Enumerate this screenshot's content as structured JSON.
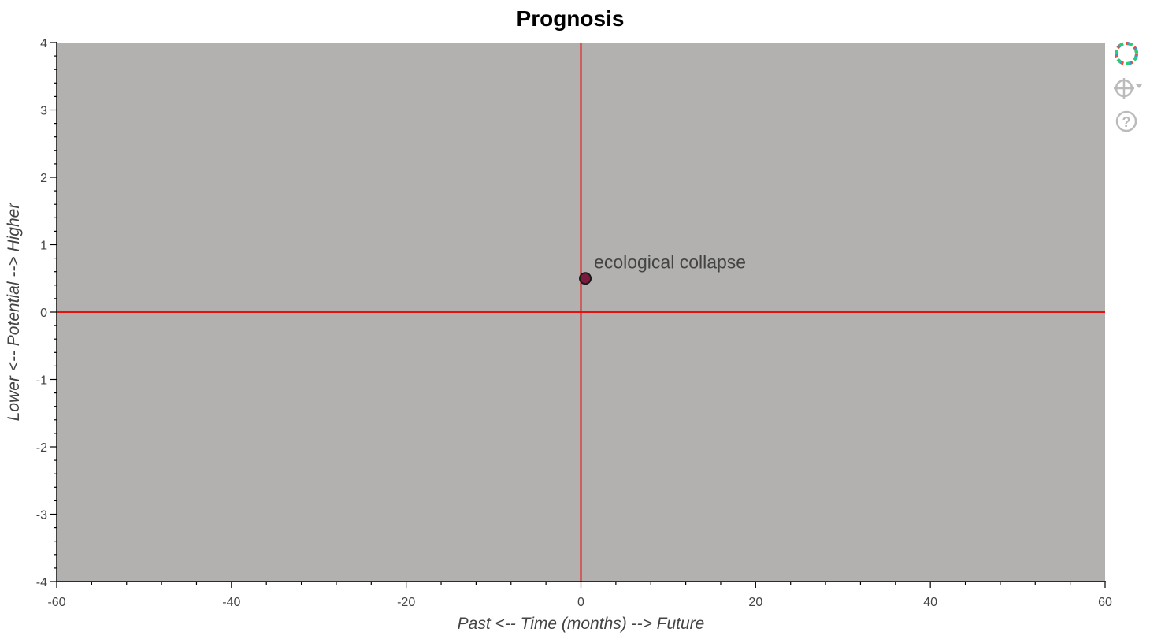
{
  "chart_data": {
    "type": "scatter",
    "title": "Prognosis",
    "xlabel": "Past <-- Time (months) --> Future",
    "ylabel": "Lower <-- Potential --> Higher",
    "xlim": [
      -60,
      60
    ],
    "ylim": [
      -4,
      4
    ],
    "x_ticks": [
      "-60",
      "-40",
      "-20",
      "0",
      "20",
      "40",
      "60"
    ],
    "y_ticks": [
      "4",
      "3",
      "2",
      "1",
      "0",
      "-1",
      "-2",
      "-3",
      "-4"
    ],
    "points": [
      {
        "x": 0.5,
        "y": 0.5,
        "label": "ecological collapse"
      }
    ],
    "reference_lines": {
      "x": 0,
      "y": 0
    },
    "grid": false,
    "colors": {
      "plot_background": "#b2b1b0",
      "reference_line": "#e8100c",
      "point_fill": "#7a1a3d",
      "point_stroke": "#1a1a1a",
      "annotation": "#444444"
    }
  },
  "toolbar": {
    "tools": [
      {
        "icon": "bokeh-logo-icon"
      },
      {
        "icon": "crosshair-icon"
      },
      {
        "icon": "help-icon"
      }
    ]
  }
}
